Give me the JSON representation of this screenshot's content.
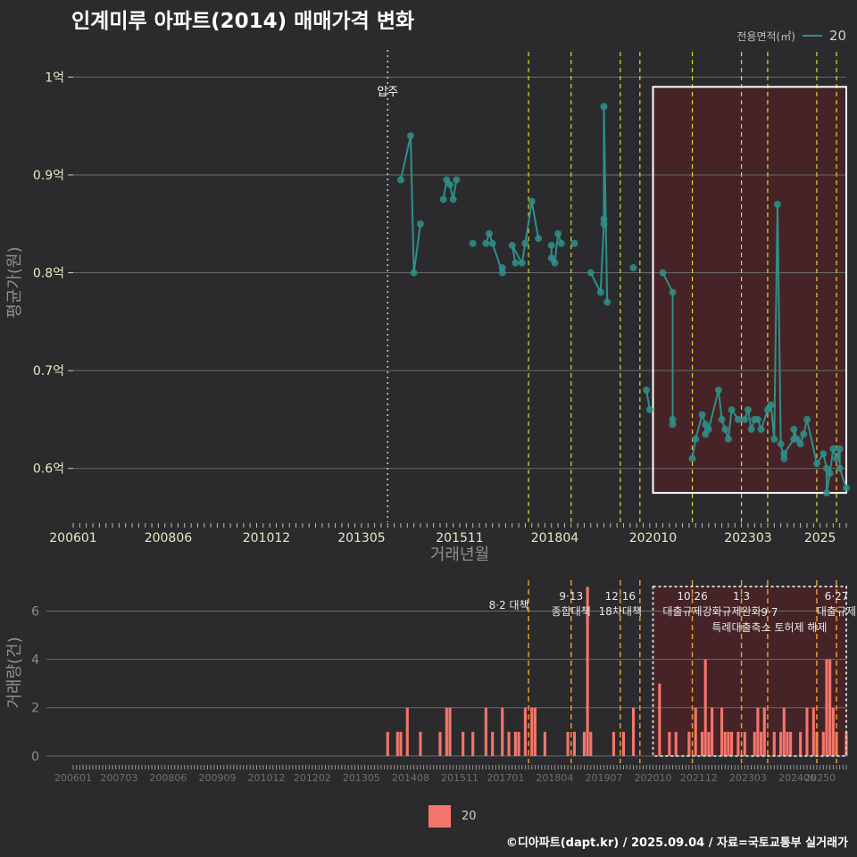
{
  "title": "인계미루 아파트(2014) 매매가격 변화",
  "legend": {
    "title": "전용면적(㎡)",
    "item": "20"
  },
  "bar_legend": {
    "item": "20"
  },
  "caption": "©디아파트(dapt.kr) / 2025.09.04 / 자료=국토교통부 실거래가",
  "colors": {
    "line": "#2f8f8a",
    "bar": "#f4766c",
    "policy": "#e0d82a",
    "policy_bottom": "#e89a2a",
    "box": "#4a2226"
  },
  "chart_data": [
    {
      "type": "line",
      "xlabel": "거래년월",
      "ylabel": "평균가(원)",
      "x_ticks": [
        "200601",
        "200806",
        "201012",
        "201305",
        "201511",
        "201804",
        "202010",
        "202303",
        "2025"
      ],
      "y_ticks": [
        {
          "value": 0.6,
          "label": "0.6억"
        },
        {
          "value": 0.7,
          "label": "0.7억"
        },
        {
          "value": 0.8,
          "label": "0.8억"
        },
        {
          "value": 0.9,
          "label": "0.9억"
        },
        {
          "value": 1.0,
          "label": "1억"
        }
      ],
      "ylim": [
        0.545,
        1.035
      ],
      "xlim": [
        "2006-01",
        "2025-09"
      ],
      "move_in": {
        "x": "2014-01",
        "label": "입주"
      },
      "highlight_range": {
        "x0": "2020-10",
        "x1": "2025-09",
        "y0": 0.575,
        "y1": 0.99
      },
      "policy_dates": [
        "2017-08",
        "2018-09",
        "2019-12",
        "2020-06",
        "2021-10",
        "2023-01",
        "2023-09",
        "2024-12",
        "2025-06"
      ],
      "series": [
        {
          "name": "20",
          "points": [
            [
              "2014-05",
              0.895
            ],
            [
              "2014-08",
              0.94
            ],
            [
              "2014-09",
              0.8
            ],
            [
              "2014-11",
              0.85
            ],
            [
              "2015-06",
              0.875
            ],
            [
              "2015-07",
              0.895
            ],
            [
              "2015-08",
              0.89
            ],
            [
              "2015-09",
              0.875
            ],
            [
              "2015-10",
              0.895
            ],
            [
              "2016-03",
              0.83
            ],
            [
              "2016-07",
              0.83
            ],
            [
              "2016-08",
              0.84
            ],
            [
              "2016-09",
              0.83
            ],
            [
              "2016-12",
              0.8
            ],
            [
              "2016-12",
              0.805
            ],
            [
              "2017-04",
              0.81
            ],
            [
              "2017-03",
              0.828
            ],
            [
              "2017-06",
              0.81
            ],
            [
              "2017-07",
              0.83
            ],
            [
              "2017-09",
              0.873
            ],
            [
              "2017-11",
              0.835
            ],
            [
              "2018-03",
              0.828
            ],
            [
              "2018-03",
              0.815
            ],
            [
              "2018-04",
              0.81
            ],
            [
              "2018-05",
              0.84
            ],
            [
              "2018-06",
              0.83
            ],
            [
              "2018-10",
              0.83
            ],
            [
              "2019-03",
              0.8
            ],
            [
              "2019-06",
              0.78
            ],
            [
              "2019-07",
              0.85
            ],
            [
              "2019-07",
              0.855
            ],
            [
              "2019-07",
              0.97
            ],
            [
              "2019-08",
              0.77
            ],
            [
              "2020-04",
              0.805
            ],
            [
              "2020-08",
              0.68
            ],
            [
              "2020-09",
              0.66
            ],
            [
              "2021-01",
              0.8
            ],
            [
              "2021-04",
              0.78
            ],
            [
              "2021-04",
              0.645
            ],
            [
              "2021-04",
              0.65
            ],
            [
              "2021-10",
              0.61
            ],
            [
              "2021-11",
              0.63
            ],
            [
              "2022-01",
              0.655
            ],
            [
              "2022-02",
              0.645
            ],
            [
              "2022-02",
              0.635
            ],
            [
              "2022-03",
              0.64
            ],
            [
              "2022-06",
              0.68
            ],
            [
              "2022-07",
              0.65
            ],
            [
              "2022-08",
              0.64
            ],
            [
              "2022-09",
              0.63
            ],
            [
              "2022-10",
              0.66
            ],
            [
              "2022-12",
              0.65
            ],
            [
              "2023-02",
              0.65
            ],
            [
              "2023-03",
              0.66
            ],
            [
              "2023-04",
              0.64
            ],
            [
              "2023-05",
              0.65
            ],
            [
              "2023-06",
              0.65
            ],
            [
              "2023-07",
              0.64
            ],
            [
              "2023-09",
              0.66
            ],
            [
              "2023-10",
              0.665
            ],
            [
              "2023-11",
              0.63
            ],
            [
              "2023-12",
              0.87
            ],
            [
              "2024-01",
              0.625
            ],
            [
              "2024-02",
              0.61
            ],
            [
              "2024-02",
              0.615
            ],
            [
              "2024-05",
              0.63
            ],
            [
              "2024-05",
              0.64
            ],
            [
              "2024-06",
              0.63
            ],
            [
              "2024-07",
              0.625
            ],
            [
              "2024-08",
              0.635
            ],
            [
              "2024-09",
              0.65
            ],
            [
              "2024-12",
              0.605
            ],
            [
              "2025-02",
              0.615
            ],
            [
              "2025-03",
              0.6
            ],
            [
              "2025-03",
              0.575
            ],
            [
              "2025-04",
              0.595
            ],
            [
              "2025-05",
              0.62
            ],
            [
              "2025-06",
              0.61
            ],
            [
              "2025-07",
              0.62
            ],
            [
              "2025-07",
              0.6
            ],
            [
              "2025-09",
              0.58
            ]
          ]
        }
      ]
    },
    {
      "type": "bar",
      "ylabel": "거래량(건)",
      "x_ticks": [
        "200601",
        "200703",
        "200806",
        "200909",
        "201012",
        "201202",
        "201305",
        "201408",
        "201511",
        "201701",
        "201804",
        "201907",
        "202010",
        "202112",
        "202303",
        "202406",
        "20250"
      ],
      "y_ticks": [
        0,
        2,
        4,
        6
      ],
      "ylim": [
        -0.3,
        7.2
      ],
      "xlim": [
        "2006-01",
        "2025-09"
      ],
      "highlight_range": {
        "x0": "2020-10",
        "x1": "2025-09"
      },
      "policy_dates": [
        "2017-08",
        "2018-09",
        "2019-12",
        "2020-06",
        "2021-10",
        "2023-01",
        "2023-09",
        "2024-12",
        "2025-06"
      ],
      "policy_labels": [
        {
          "x": "2017-08",
          "lines": [
            "8·2 대책"
          ]
        },
        {
          "x": "2018-09",
          "lines": [
            "9·13",
            "종합대책"
          ]
        },
        {
          "x": "2019-12",
          "lines": [
            "12·16",
            "18차대책"
          ]
        },
        {
          "x": "2021-10",
          "lines": [
            "10·26",
            "대출규제강화"
          ]
        },
        {
          "x": "2023-01",
          "lines": [
            "1·3",
            "규제완화"
          ]
        },
        {
          "x": "2023-09",
          "lines": [
            "9·7",
            "특례대출축소 토허제 해제"
          ]
        },
        {
          "x": "2025-06",
          "lines": [
            "6·27",
            "대출규제"
          ]
        }
      ],
      "series": [
        {
          "name": "20",
          "bars": [
            [
              "2014-01",
              1
            ],
            [
              "2014-04",
              1
            ],
            [
              "2014-05",
              1
            ],
            [
              "2014-07",
              2
            ],
            [
              "2014-11",
              1
            ],
            [
              "2015-05",
              1
            ],
            [
              "2015-07",
              2
            ],
            [
              "2015-08",
              2
            ],
            [
              "2015-12",
              1
            ],
            [
              "2016-03",
              1
            ],
            [
              "2016-07",
              2
            ],
            [
              "2016-09",
              1
            ],
            [
              "2016-12",
              2
            ],
            [
              "2017-02",
              1
            ],
            [
              "2017-04",
              1
            ],
            [
              "2017-05",
              1
            ],
            [
              "2017-07",
              2
            ],
            [
              "2017-09",
              2
            ],
            [
              "2017-10",
              2
            ],
            [
              "2018-01",
              1
            ],
            [
              "2018-08",
              1
            ],
            [
              "2018-10",
              1
            ],
            [
              "2019-01",
              1
            ],
            [
              "2019-02",
              7
            ],
            [
              "2019-03",
              1
            ],
            [
              "2019-10",
              1
            ],
            [
              "2020-01",
              1
            ],
            [
              "2020-04",
              2
            ],
            [
              "2020-12",
              3
            ],
            [
              "2021-03",
              1
            ],
            [
              "2021-05",
              1
            ],
            [
              "2021-09",
              1
            ],
            [
              "2021-11",
              2
            ],
            [
              "2022-01",
              1
            ],
            [
              "2022-02",
              4
            ],
            [
              "2022-03",
              1
            ],
            [
              "2022-04",
              2
            ],
            [
              "2022-07",
              2
            ],
            [
              "2022-08",
              1
            ],
            [
              "2022-09",
              1
            ],
            [
              "2022-10",
              1
            ],
            [
              "2022-12",
              1
            ],
            [
              "2023-02",
              1
            ],
            [
              "2023-05",
              1
            ],
            [
              "2023-06",
              2
            ],
            [
              "2023-07",
              1
            ],
            [
              "2023-08",
              2
            ],
            [
              "2023-11",
              1
            ],
            [
              "2024-01",
              1
            ],
            [
              "2024-02",
              2
            ],
            [
              "2024-03",
              1
            ],
            [
              "2024-04",
              1
            ],
            [
              "2024-07",
              1
            ],
            [
              "2024-09",
              2
            ],
            [
              "2024-11",
              2
            ],
            [
              "2024-12",
              1
            ],
            [
              "2025-02",
              1
            ],
            [
              "2025-03",
              4
            ],
            [
              "2025-04",
              4
            ],
            [
              "2025-05",
              2
            ],
            [
              "2025-06",
              1
            ],
            [
              "2025-09",
              1
            ]
          ]
        }
      ]
    }
  ]
}
